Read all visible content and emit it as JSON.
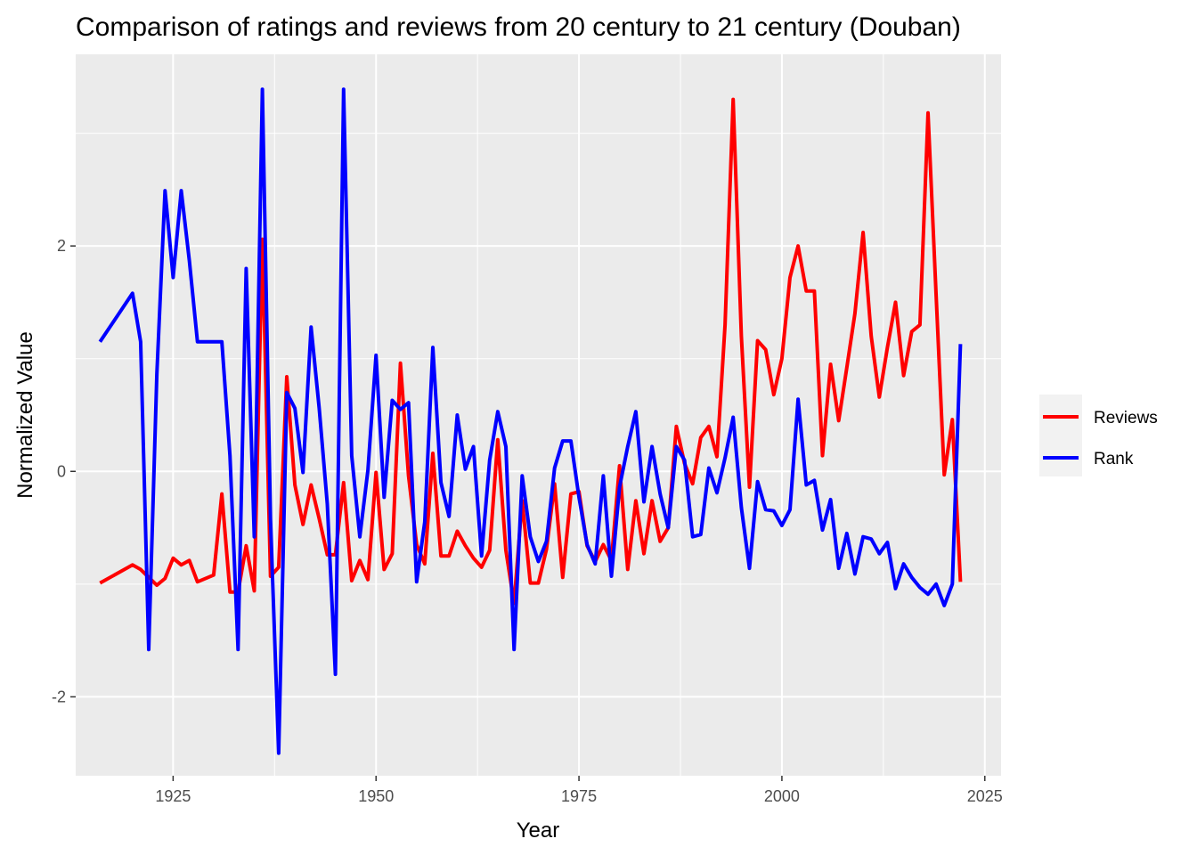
{
  "chart_data": {
    "type": "line",
    "title": "Comparison of ratings and reviews from 20 century to 21 century (Douban)",
    "xlabel": "Year",
    "ylabel": "Normalized Value",
    "xlim": [
      1913,
      2027
    ],
    "ylim": [
      -2.7,
      3.7
    ],
    "x_ticks": [
      1925,
      1950,
      1975,
      2000,
      2025
    ],
    "y_ticks": [
      -2,
      0,
      2
    ],
    "x_minor_ticks": [
      1912.5,
      1937.5,
      1962.5,
      1987.5,
      2012.5
    ],
    "y_minor_ticks": [
      -1,
      1,
      3
    ],
    "grid": true,
    "panel_background": "#ebebeb",
    "grid_color": "#ffffff",
    "legend_position": "right",
    "legend": [
      {
        "label": "Reviews",
        "color": "#ff0000"
      },
      {
        "label": "Rank",
        "color": "#0000ff"
      }
    ],
    "series": [
      {
        "name": "Reviews",
        "color": "#ff0000",
        "points": [
          [
            1916,
            -0.99
          ],
          [
            1920,
            -0.83
          ],
          [
            1921,
            -0.87
          ],
          [
            1923,
            -1.01
          ],
          [
            1924,
            -0.95
          ],
          [
            1925,
            -0.77
          ],
          [
            1926,
            -0.83
          ],
          [
            1927,
            -0.79
          ],
          [
            1928,
            -0.98
          ],
          [
            1930,
            -0.92
          ],
          [
            1931,
            -0.2
          ],
          [
            1932,
            -1.07
          ],
          [
            1933,
            -1.07
          ],
          [
            1934,
            -0.66
          ],
          [
            1935,
            -1.06
          ],
          [
            1936,
            2.06
          ],
          [
            1937,
            -0.93
          ],
          [
            1938,
            -0.85
          ],
          [
            1939,
            0.84
          ],
          [
            1940,
            -0.12
          ],
          [
            1941,
            -0.47
          ],
          [
            1942,
            -0.12
          ],
          [
            1943,
            -0.42
          ],
          [
            1944,
            -0.74
          ],
          [
            1945,
            -0.74
          ],
          [
            1946,
            -0.1
          ],
          [
            1947,
            -0.97
          ],
          [
            1948,
            -0.79
          ],
          [
            1949,
            -0.96
          ],
          [
            1950,
            -0.01
          ],
          [
            1951,
            -0.87
          ],
          [
            1952,
            -0.73
          ],
          [
            1953,
            0.96
          ],
          [
            1954,
            -0.04
          ],
          [
            1955,
            -0.65
          ],
          [
            1956,
            -0.82
          ],
          [
            1957,
            0.16
          ],
          [
            1958,
            -0.75
          ],
          [
            1959,
            -0.75
          ],
          [
            1960,
            -0.53
          ],
          [
            1961,
            -0.66
          ],
          [
            1962,
            -0.77
          ],
          [
            1963,
            -0.85
          ],
          [
            1964,
            -0.7
          ],
          [
            1965,
            0.28
          ],
          [
            1966,
            -0.7
          ],
          [
            1967,
            -1.17
          ],
          [
            1968,
            -0.26
          ],
          [
            1969,
            -0.99
          ],
          [
            1970,
            -0.99
          ],
          [
            1971,
            -0.69
          ],
          [
            1972,
            -0.11
          ],
          [
            1973,
            -0.94
          ],
          [
            1974,
            -0.2
          ],
          [
            1975,
            -0.18
          ],
          [
            1976,
            -0.66
          ],
          [
            1977,
            -0.8
          ],
          [
            1978,
            -0.65
          ],
          [
            1979,
            -0.79
          ],
          [
            1980,
            0.05
          ],
          [
            1981,
            -0.87
          ],
          [
            1982,
            -0.26
          ],
          [
            1983,
            -0.73
          ],
          [
            1984,
            -0.26
          ],
          [
            1985,
            -0.62
          ],
          [
            1986,
            -0.5
          ],
          [
            1987,
            0.4
          ],
          [
            1988,
            0.07
          ],
          [
            1989,
            -0.11
          ],
          [
            1990,
            0.3
          ],
          [
            1991,
            0.4
          ],
          [
            1992,
            0.13
          ],
          [
            1993,
            1.3
          ],
          [
            1994,
            3.3
          ],
          [
            1995,
            1.2
          ],
          [
            1996,
            -0.14
          ],
          [
            1997,
            1.16
          ],
          [
            1998,
            1.08
          ],
          [
            1999,
            0.68
          ],
          [
            2000,
            1.0
          ],
          [
            2001,
            1.72
          ],
          [
            2002,
            2.0
          ],
          [
            2003,
            1.6
          ],
          [
            2004,
            1.6
          ],
          [
            2005,
            0.14
          ],
          [
            2006,
            0.95
          ],
          [
            2007,
            0.45
          ],
          [
            2008,
            0.92
          ],
          [
            2009,
            1.4
          ],
          [
            2010,
            2.12
          ],
          [
            2011,
            1.2
          ],
          [
            2012,
            0.66
          ],
          [
            2013,
            1.1
          ],
          [
            2014,
            1.5
          ],
          [
            2015,
            0.85
          ],
          [
            2016,
            1.24
          ],
          [
            2017,
            1.3
          ],
          [
            2018,
            3.18
          ],
          [
            2019,
            1.56
          ],
          [
            2020,
            -0.03
          ],
          [
            2021,
            0.46
          ],
          [
            2022,
            -0.98
          ]
        ]
      },
      {
        "name": "Rank",
        "color": "#0000ff",
        "points": [
          [
            1916,
            1.15
          ],
          [
            1920,
            1.58
          ],
          [
            1921,
            1.15
          ],
          [
            1922,
            -1.58
          ],
          [
            1923,
            0.86
          ],
          [
            1924,
            2.49
          ],
          [
            1925,
            1.72
          ],
          [
            1926,
            2.49
          ],
          [
            1927,
            1.87
          ],
          [
            1928,
            1.15
          ],
          [
            1931,
            1.15
          ],
          [
            1932,
            0.14
          ],
          [
            1933,
            -1.58
          ],
          [
            1934,
            1.8
          ],
          [
            1935,
            -0.58
          ],
          [
            1936,
            3.39
          ],
          [
            1937,
            -0.42
          ],
          [
            1938,
            -2.5
          ],
          [
            1939,
            0.7
          ],
          [
            1940,
            0.56
          ],
          [
            1941,
            -0.01
          ],
          [
            1942,
            1.28
          ],
          [
            1943,
            0.56
          ],
          [
            1944,
            -0.29
          ],
          [
            1945,
            -1.8
          ],
          [
            1946,
            3.39
          ],
          [
            1947,
            0.14
          ],
          [
            1948,
            -0.58
          ],
          [
            1949,
            0.01
          ],
          [
            1950,
            1.03
          ],
          [
            1951,
            -0.23
          ],
          [
            1952,
            0.63
          ],
          [
            1953,
            0.55
          ],
          [
            1954,
            0.61
          ],
          [
            1955,
            -0.98
          ],
          [
            1956,
            -0.45
          ],
          [
            1957,
            1.1
          ],
          [
            1958,
            -0.1
          ],
          [
            1959,
            -0.4
          ],
          [
            1960,
            0.5
          ],
          [
            1961,
            0.02
          ],
          [
            1962,
            0.22
          ],
          [
            1963,
            -0.75
          ],
          [
            1964,
            0.1
          ],
          [
            1965,
            0.53
          ],
          [
            1966,
            0.22
          ],
          [
            1967,
            -1.58
          ],
          [
            1968,
            -0.04
          ],
          [
            1969,
            -0.58
          ],
          [
            1970,
            -0.8
          ],
          [
            1971,
            -0.62
          ],
          [
            1972,
            0.03
          ],
          [
            1973,
            0.27
          ],
          [
            1974,
            0.27
          ],
          [
            1975,
            -0.23
          ],
          [
            1976,
            -0.65
          ],
          [
            1977,
            -0.82
          ],
          [
            1978,
            -0.04
          ],
          [
            1979,
            -0.93
          ],
          [
            1980,
            -0.14
          ],
          [
            1981,
            0.22
          ],
          [
            1982,
            0.53
          ],
          [
            1983,
            -0.27
          ],
          [
            1984,
            0.22
          ],
          [
            1985,
            -0.2
          ],
          [
            1986,
            -0.5
          ],
          [
            1987,
            0.22
          ],
          [
            1988,
            0.1
          ],
          [
            1989,
            -0.58
          ],
          [
            1990,
            -0.56
          ],
          [
            1991,
            0.03
          ],
          [
            1992,
            -0.19
          ],
          [
            1993,
            0.12
          ],
          [
            1994,
            0.48
          ],
          [
            1995,
            -0.32
          ],
          [
            1996,
            -0.86
          ],
          [
            1997,
            -0.09
          ],
          [
            1998,
            -0.34
          ],
          [
            1999,
            -0.35
          ],
          [
            2000,
            -0.48
          ],
          [
            2001,
            -0.34
          ],
          [
            2002,
            0.64
          ],
          [
            2003,
            -0.12
          ],
          [
            2004,
            -0.08
          ],
          [
            2005,
            -0.52
          ],
          [
            2006,
            -0.25
          ],
          [
            2007,
            -0.86
          ],
          [
            2008,
            -0.55
          ],
          [
            2009,
            -0.91
          ],
          [
            2010,
            -0.58
          ],
          [
            2011,
            -0.6
          ],
          [
            2012,
            -0.73
          ],
          [
            2013,
            -0.63
          ],
          [
            2014,
            -1.04
          ],
          [
            2015,
            -0.82
          ],
          [
            2016,
            -0.94
          ],
          [
            2017,
            -1.03
          ],
          [
            2018,
            -1.09
          ],
          [
            2019,
            -1.0
          ],
          [
            2020,
            -1.19
          ],
          [
            2021,
            -1.0
          ],
          [
            2022,
            1.13
          ]
        ]
      }
    ]
  }
}
